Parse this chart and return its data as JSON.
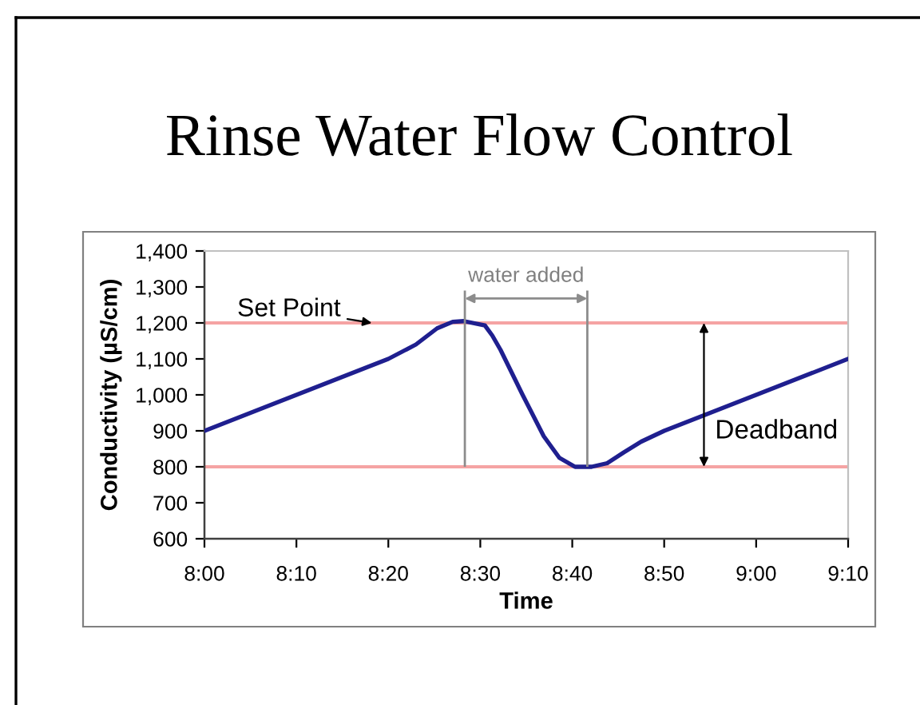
{
  "chart_data": {
    "type": "line",
    "title": "Rinse Water Flow Control",
    "xlabel": "Time",
    "ylabel": "Conductivity (µS/cm)",
    "x": [
      8.0,
      8.1667,
      8.3333,
      8.3833,
      8.4217,
      8.45,
      8.47,
      8.5083,
      8.5217,
      8.5367,
      8.5767,
      8.615,
      8.6433,
      8.6717,
      8.7017,
      8.73,
      8.76,
      8.7917,
      8.8333,
      9.0,
      9.1667
    ],
    "series": [
      {
        "color": "#1f1f8f",
        "values": [
          900,
          1000,
          1100,
          1140,
          1185,
          1203,
          1205,
          1193,
          1165,
          1125,
          1000,
          885,
          825,
          800,
          800,
          810,
          840,
          870,
          900,
          1000,
          1100
        ]
      }
    ],
    "xlim": [
      8.0,
      9.1667
    ],
    "xticks": [
      {
        "value": 8.0,
        "label": "8:00"
      },
      {
        "value": 8.1667,
        "label": "8:10"
      },
      {
        "value": 8.3333,
        "label": "8:20"
      },
      {
        "value": 8.5,
        "label": "8:30"
      },
      {
        "value": 8.6667,
        "label": "8:40"
      },
      {
        "value": 8.8333,
        "label": "8:50"
      },
      {
        "value": 9.0,
        "label": "9:00"
      },
      {
        "value": 9.1667,
        "label": "9:10"
      }
    ],
    "ylim": [
      600,
      1400
    ],
    "yticks": [
      600,
      700,
      800,
      900,
      {
        "value": 1000,
        "label": "1,000"
      },
      {
        "value": 1100,
        "label": "1,100"
      },
      {
        "value": 1200,
        "label": "1,200"
      },
      {
        "value": 1300,
        "label": "1,300"
      },
      {
        "value": 1400,
        "label": "1,400"
      }
    ],
    "ref_lines": [
      {
        "axis": "y",
        "value": 1200,
        "label": "Set Point",
        "color": "#f5a3a3"
      },
      {
        "axis": "y",
        "value": 800,
        "label": null,
        "color": "#f5a3a3"
      },
      {
        "axis": "x",
        "value": 8.472,
        "label": null,
        "color": "#8c8c8c"
      },
      {
        "axis": "x",
        "value": 8.694,
        "label": null,
        "color": "#8c8c8c"
      }
    ],
    "annotations": [
      "water added",
      "Deadband"
    ],
    "marker": "none",
    "line_style": "solid"
  }
}
